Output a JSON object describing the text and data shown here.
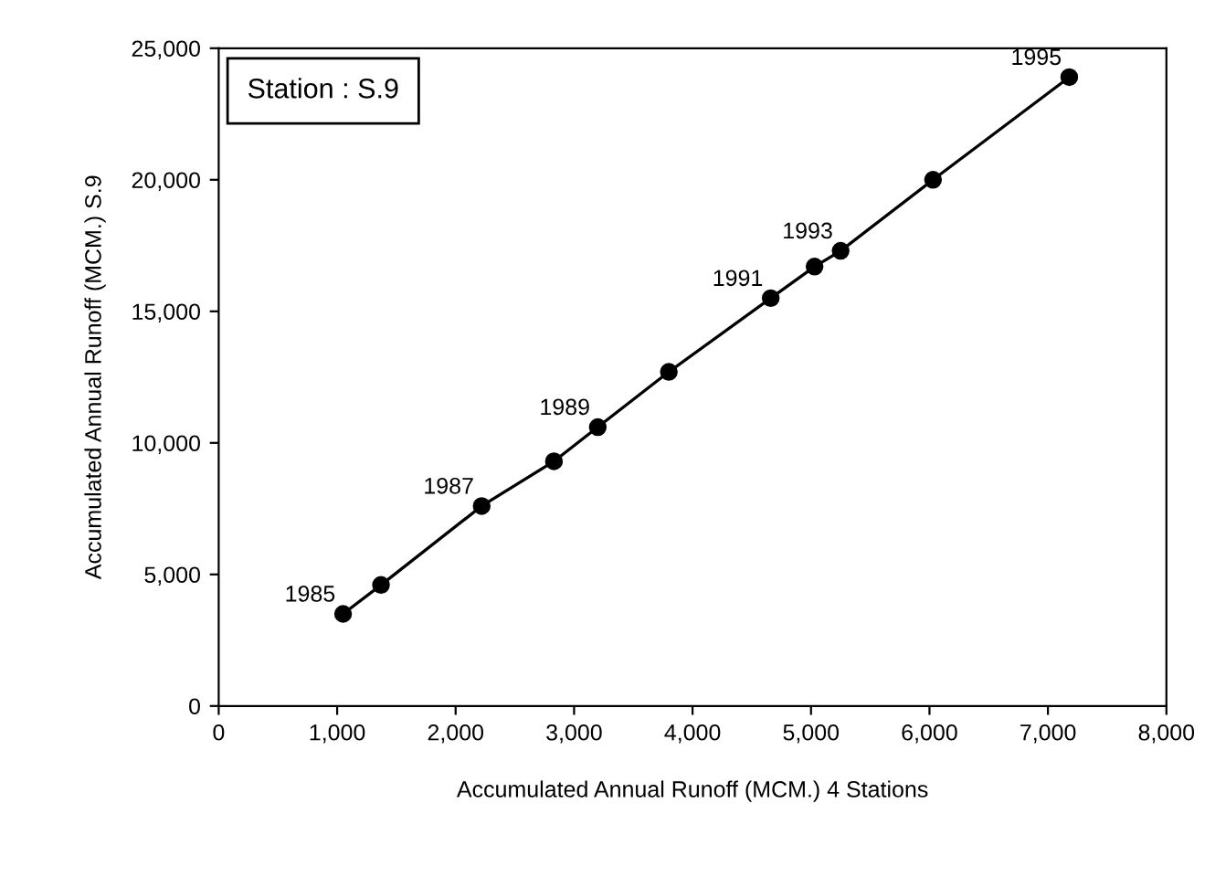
{
  "chart_data": {
    "type": "line",
    "xlabel": "Accumulated Annual Runoff (MCM.) 4 Stations",
    "ylabel": "Accumulated Annual Runoff (MCM.) S.9",
    "x": [
      1050,
      1370,
      2220,
      2830,
      3200,
      3800,
      4660,
      5030,
      5250,
      6030,
      7180
    ],
    "values": [
      3500,
      4600,
      7600,
      9300,
      10600,
      12700,
      15500,
      16700,
      17300,
      20000,
      23900
    ],
    "color": "#000000",
    "marker": "circle",
    "line_style": "solid",
    "grid": false,
    "xlim": [
      0,
      8000
    ],
    "ylim": [
      0,
      25000
    ],
    "xticks": [
      0,
      {
        "value": 1000,
        "label": "1,000"
      },
      {
        "value": 2000,
        "label": "2,000"
      },
      {
        "value": 3000,
        "label": "3,000"
      },
      {
        "value": 4000,
        "label": "4,000"
      },
      {
        "value": 5000,
        "label": "5,000"
      },
      {
        "value": 6000,
        "label": "6,000"
      },
      {
        "value": 7000,
        "label": "7,000"
      },
      {
        "value": 8000,
        "label": "8,000"
      }
    ],
    "yticks": [
      0,
      {
        "value": 5000,
        "label": "5,000"
      },
      {
        "value": 10000,
        "label": "10,000"
      },
      {
        "value": 15000,
        "label": "15,000"
      },
      {
        "value": 20000,
        "label": "20,000"
      },
      {
        "value": 25000,
        "label": "25,000"
      }
    ],
    "annotations": [
      "Station : S.9",
      {
        "text": "1985",
        "x": 1050,
        "y": 3500
      },
      {
        "text": "1987",
        "x": 2220,
        "y": 7600
      },
      {
        "text": "1989",
        "x": 3200,
        "y": 10600
      },
      {
        "text": "1991",
        "x": 4660,
        "y": 15500
      },
      {
        "text": "1993",
        "x": 5250,
        "y": 17300
      },
      {
        "text": "1995",
        "x": 7180,
        "y": 23900
      }
    ]
  }
}
